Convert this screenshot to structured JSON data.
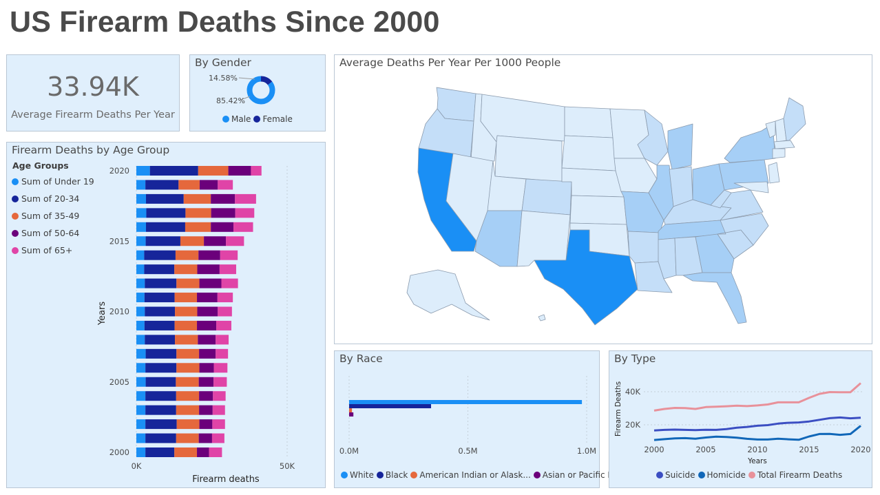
{
  "title": "US Firearm Deaths Since 2000",
  "kpi": {
    "value": "33.94K",
    "label": "Average Firearm Deaths Per Year"
  },
  "gender": {
    "title": "By Gender",
    "legend": [
      {
        "name": "Male",
        "color": "#1a8ff5"
      },
      {
        "name": "Female",
        "color": "#16259a"
      }
    ]
  },
  "map": {
    "title": "Average Deaths Per Year Per 1000 People",
    "color_scale": [
      "#ddedfb",
      "#c4def8",
      "#a6cff6",
      "#1a8ff5"
    ]
  },
  "age": {
    "title": "Firearm Deaths by Age Group",
    "legend_title": "Age Groups",
    "legend": [
      {
        "name": "Sum of Under 19",
        "color": "#1a8ff5"
      },
      {
        "name": "Sum of 20-34",
        "color": "#16259a"
      },
      {
        "name": "Sum of 35-49",
        "color": "#e5683c"
      },
      {
        "name": "Sum of 50-64",
        "color": "#6b007b"
      },
      {
        "name": "Sum of 65+",
        "color": "#e044a7"
      }
    ]
  },
  "race": {
    "title": "By Race",
    "legend": [
      {
        "name": "White",
        "color": "#1a8ff5"
      },
      {
        "name": "Black",
        "color": "#16259a"
      },
      {
        "name": "American Indian or Alask...",
        "color": "#e5683c"
      },
      {
        "name": "Asian or Pacific Is...",
        "color": "#6b007b"
      }
    ]
  },
  "type": {
    "title": "By Type",
    "legend": [
      {
        "name": "Suicide",
        "color": "#3b4ec2"
      },
      {
        "name": "Homicide",
        "color": "#1167b8"
      },
      {
        "name": "Total Firearm Deaths",
        "color": "#e8919a"
      }
    ]
  },
  "chart_data": [
    {
      "type": "pie",
      "title": "By Gender",
      "categories": [
        "Male",
        "Female"
      ],
      "values": [
        85.42,
        14.58
      ],
      "labels": [
        "85.42%",
        "14.58%"
      ],
      "donut": true
    },
    {
      "type": "bar",
      "orientation": "horizontal",
      "stacked": true,
      "title": "Firearm Deaths by Age Group",
      "xlabel": "Firearm deaths",
      "ylabel": "Years",
      "xlim": [
        0,
        60000
      ],
      "xticks": [
        0,
        50000
      ],
      "xtick_labels": [
        "0K",
        "50K"
      ],
      "ytick_labels": [
        "2020",
        "2015",
        "2010",
        "2005",
        "2000"
      ],
      "categories": [
        2020,
        2019,
        2018,
        2017,
        2016,
        2015,
        2014,
        2013,
        2012,
        2011,
        2010,
        2009,
        2008,
        2007,
        2006,
        2005,
        2004,
        2003,
        2002,
        2001,
        2000
      ],
      "series": [
        {
          "name": "Sum of Under 19",
          "values": [
            4500,
            3000,
            3200,
            3300,
            3200,
            3100,
            2600,
            2600,
            2800,
            2700,
            2800,
            2700,
            2800,
            3100,
            3000,
            3100,
            3000,
            3000,
            3000,
            3000,
            3000
          ]
        },
        {
          "name": "Sum of 20-34",
          "values": [
            16000,
            11000,
            12500,
            13000,
            13000,
            11500,
            10400,
            10000,
            10500,
            10000,
            10000,
            10000,
            10000,
            10200,
            10300,
            10000,
            10200,
            10200,
            10400,
            10200,
            9600
          ]
        },
        {
          "name": "Sum of 35-49",
          "values": [
            10000,
            7000,
            9000,
            8500,
            8500,
            7800,
            7600,
            7600,
            7600,
            7400,
            7400,
            7400,
            7600,
            7500,
            7600,
            7600,
            7600,
            7600,
            7500,
            7500,
            7500
          ]
        },
        {
          "name": "Sum of 50-64",
          "values": [
            7500,
            6000,
            8000,
            8000,
            7500,
            7300,
            7200,
            7400,
            7300,
            6800,
            6800,
            6400,
            5900,
            5500,
            4800,
            4900,
            4600,
            4500,
            4300,
            4400,
            4000
          ]
        },
        {
          "name": "Sum of 65+",
          "values": [
            3500,
            5000,
            7000,
            6300,
            6500,
            6000,
            5800,
            5500,
            5500,
            5100,
            4700,
            5000,
            4300,
            4100,
            4500,
            4400,
            4200,
            4100,
            4200,
            4100,
            4300
          ]
        }
      ]
    },
    {
      "type": "bar",
      "orientation": "horizontal",
      "title": "By Race",
      "xlim": [
        0,
        1000000
      ],
      "xticks": [
        0,
        500000,
        1000000
      ],
      "xtick_labels": [
        "0.0M",
        "0.5M",
        "1.0M"
      ],
      "categories": [
        "White",
        "Black",
        "American Indian or Alaska Native",
        "Asian or Pacific Islander"
      ],
      "values": [
        980000,
        345000,
        12000,
        18000
      ]
    },
    {
      "type": "line",
      "title": "By Type",
      "xlabel": "Years",
      "ylabel": "Firearm Deaths",
      "xlim": [
        2000,
        2020
      ],
      "ylim": [
        5000,
        48000
      ],
      "xticks": [
        2000,
        2005,
        2010,
        2015,
        2020
      ],
      "yticks": [
        20000,
        40000
      ],
      "ytick_labels": [
        "20K",
        "40K"
      ],
      "x": [
        2000,
        2001,
        2002,
        2003,
        2004,
        2005,
        2006,
        2007,
        2008,
        2009,
        2010,
        2011,
        2012,
        2013,
        2014,
        2015,
        2016,
        2017,
        2018,
        2019,
        2020
      ],
      "series": [
        {
          "name": "Suicide",
          "values": [
            16600,
            16900,
            17100,
            16900,
            16800,
            17000,
            16900,
            17400,
            18200,
            18700,
            19400,
            19800,
            20700,
            21200,
            21400,
            22000,
            23000,
            24000,
            24400,
            23900,
            24300
          ]
        },
        {
          "name": "Homicide",
          "values": [
            10800,
            11300,
            11800,
            11900,
            11600,
            12300,
            12800,
            12600,
            12200,
            11500,
            11100,
            11100,
            11600,
            11200,
            10900,
            12900,
            14400,
            14500,
            13900,
            14400,
            19400
          ]
        },
        {
          "name": "Total Firearm Deaths",
          "values": [
            28600,
            29600,
            30200,
            30100,
            29600,
            30700,
            30900,
            31200,
            31600,
            31300,
            31700,
            32300,
            33600,
            33600,
            33600,
            36300,
            38700,
            39800,
            39700,
            39700,
            45200
          ]
        }
      ]
    }
  ]
}
